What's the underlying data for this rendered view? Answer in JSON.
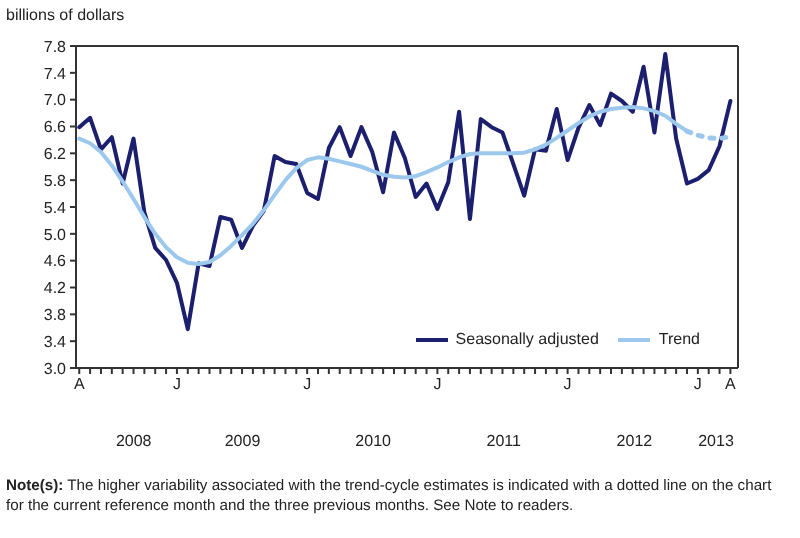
{
  "chart_data": {
    "type": "line",
    "ylabel": "billions of dollars",
    "categories": [
      "A",
      null,
      null,
      null,
      null,
      null,
      null,
      null,
      null,
      "J",
      null,
      null,
      null,
      null,
      null,
      null,
      null,
      null,
      null,
      null,
      null,
      "J",
      null,
      null,
      null,
      null,
      null,
      null,
      null,
      null,
      null,
      null,
      null,
      "J",
      null,
      null,
      null,
      null,
      null,
      null,
      null,
      null,
      null,
      null,
      null,
      "J",
      null,
      null,
      null,
      null,
      null,
      null,
      null,
      null,
      null,
      null,
      null,
      "J",
      null,
      null,
      "A"
    ],
    "series": [
      {
        "name": "Seasonally adjusted",
        "color": "#1b1f6e",
        "line_style": "solid",
        "values": [
          6.59,
          6.73,
          6.26,
          6.44,
          5.75,
          6.42,
          5.32,
          4.79,
          4.61,
          4.27,
          3.58,
          4.56,
          4.52,
          5.25,
          5.21,
          4.79,
          5.12,
          5.34,
          6.16,
          6.07,
          6.04,
          5.61,
          5.52,
          6.28,
          6.59,
          6.16,
          6.59,
          6.22,
          5.62,
          6.51,
          6.13,
          5.55,
          5.75,
          5.37,
          5.77,
          6.82,
          5.22,
          6.71,
          6.59,
          6.51,
          6.04,
          5.57,
          6.26,
          6.24,
          6.86,
          6.1,
          6.58,
          6.92,
          6.62,
          7.09,
          6.98,
          6.82,
          7.49,
          6.51,
          7.68,
          6.42,
          5.75,
          5.82,
          5.95,
          6.31,
          6.98
        ]
      },
      {
        "name": "Trend",
        "color": "#9dc8ee",
        "line_style": "solid",
        "values": [
          6.42,
          6.35,
          6.22,
          6.02,
          5.78,
          5.52,
          5.25,
          5.0,
          4.8,
          4.65,
          4.57,
          4.55,
          4.58,
          4.68,
          4.82,
          4.98,
          5.15,
          5.35,
          5.58,
          5.8,
          5.98,
          6.1,
          6.14,
          6.12,
          6.08,
          6.04,
          6.0,
          5.94,
          5.88,
          5.85,
          5.84,
          5.86,
          5.92,
          5.99,
          6.07,
          6.14,
          6.19,
          6.2,
          6.2,
          6.2,
          6.2,
          6.21,
          6.26,
          6.33,
          6.43,
          6.54,
          6.65,
          6.75,
          6.82,
          6.86,
          6.88,
          6.89,
          6.87,
          6.83,
          6.76,
          6.64,
          6.53,
          null,
          null,
          null,
          null
        ]
      },
      {
        "color": "#9dc8ee",
        "line_style": "dotted",
        "values": [
          null,
          null,
          null,
          null,
          null,
          null,
          null,
          null,
          null,
          null,
          null,
          null,
          null,
          null,
          null,
          null,
          null,
          null,
          null,
          null,
          null,
          null,
          null,
          null,
          null,
          null,
          null,
          null,
          null,
          null,
          null,
          null,
          null,
          null,
          null,
          null,
          null,
          null,
          null,
          null,
          null,
          null,
          null,
          null,
          null,
          null,
          null,
          null,
          null,
          null,
          null,
          null,
          null,
          null,
          null,
          null,
          6.53,
          6.47,
          6.43,
          6.42,
          6.45
        ]
      }
    ],
    "ylim": [
      3.0,
      7.8
    ],
    "yticks": [
      {
        "value": 3,
        "label": "3.0"
      },
      3.4,
      3.8,
      4.2,
      4.6,
      {
        "value": 5,
        "label": "5.0"
      },
      5.4,
      5.8,
      6.2,
      6.6,
      {
        "value": 7,
        "label": "7.0"
      },
      7.4,
      7.8
    ],
    "grid": false,
    "legend": "bottom right",
    "marker": "none",
    "annotations": [
      "2008",
      "2009",
      "2010",
      "2011",
      "2012",
      "2013",
      "Note(s): The higher variability associated with the trend-cycle estimates is indicated with a dotted line on the chart for the current reference month and the three previous months. See Note to readers."
    ]
  }
}
